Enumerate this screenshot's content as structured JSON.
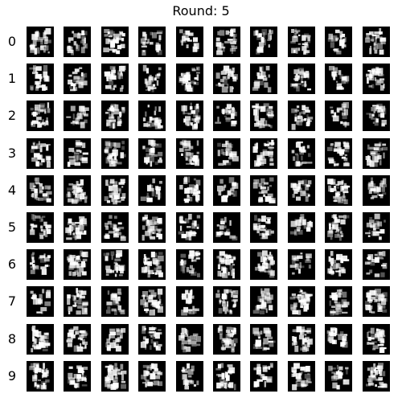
{
  "title": "Round: 5",
  "row_labels": [
    "0",
    "1",
    "2",
    "3",
    "4",
    "5",
    "6",
    "7",
    "8",
    "9"
  ],
  "grid": {
    "rows": 10,
    "cols": 10
  },
  "colors": {
    "background": "#ffffff",
    "tile": "#000000",
    "ink": "#ffffff"
  }
}
